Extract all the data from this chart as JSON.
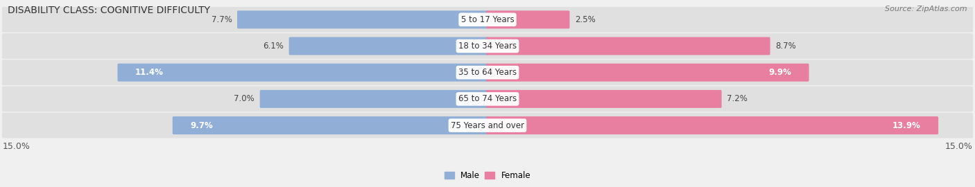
{
  "title": "DISABILITY CLASS: COGNITIVE DIFFICULTY",
  "source": "Source: ZipAtlas.com",
  "categories": [
    "5 to 17 Years",
    "18 to 34 Years",
    "35 to 64 Years",
    "65 to 74 Years",
    "75 Years and over"
  ],
  "male_values": [
    7.7,
    6.1,
    11.4,
    7.0,
    9.7
  ],
  "female_values": [
    2.5,
    8.7,
    9.9,
    7.2,
    13.9
  ],
  "male_color": "#91afd6",
  "female_color": "#e87fa0",
  "male_label": "Male",
  "female_label": "Female",
  "xlim": 15.0,
  "bg_color": "#f0f0f0",
  "row_bg_color": "#e0e0e0",
  "title_fontsize": 10,
  "source_fontsize": 8,
  "label_fontsize": 8.5,
  "category_fontsize": 8.5,
  "axis_label_fontsize": 9
}
